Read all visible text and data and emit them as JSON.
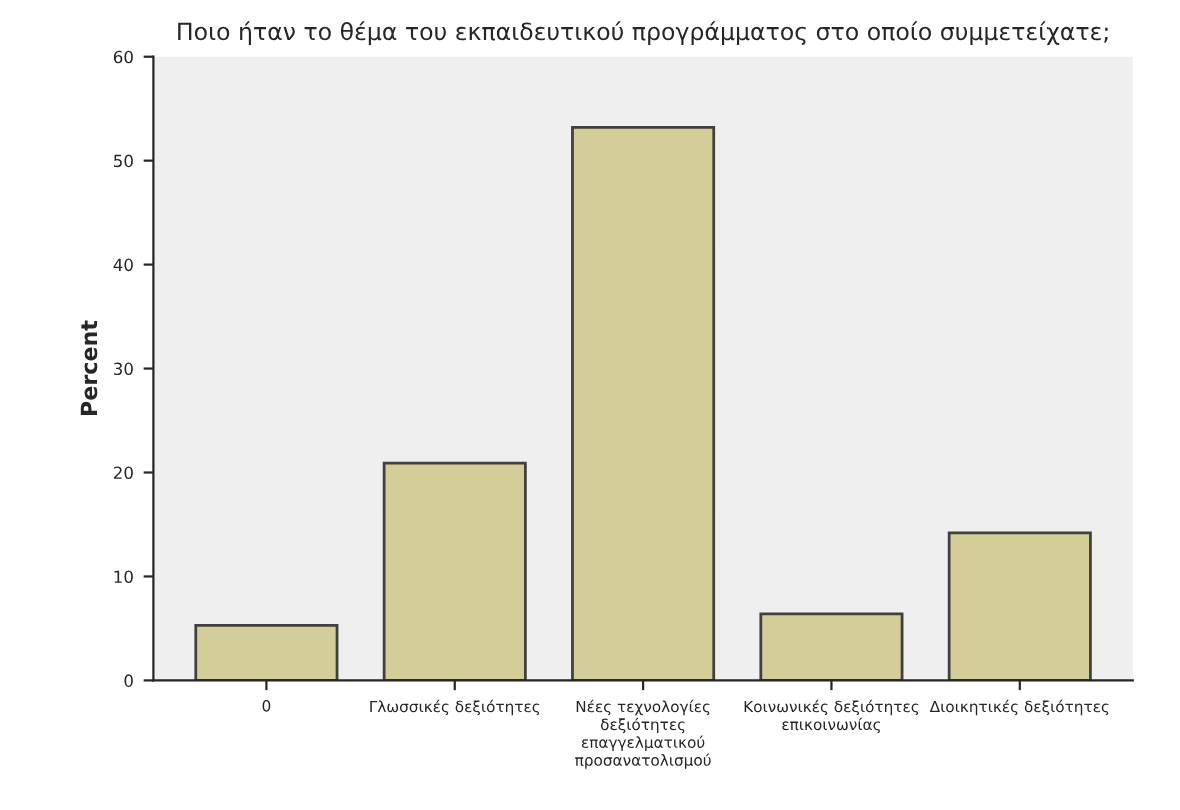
{
  "chart_data": {
    "type": "bar",
    "title": "Ποιο ήταν το θέμα του εκπαιδευτικού προγράμματος στο οποίο συμμετείχατε;",
    "ylabel": "Percent",
    "categories": [
      "0",
      "Γλωσσικές δεξιότητες",
      "Νέες τεχνολογίες δεξιότητες επαγγελματικού προσανατολισμού",
      "Κοινωνικές δεξιότητες επικοινωνίας",
      "Διοικητικές δεξιότητες"
    ],
    "values": [
      5.3,
      20.9,
      53.2,
      6.4,
      14.2
    ],
    "color": "#d3ce97",
    "ylim": [
      0,
      60
    ],
    "yticks": [
      0,
      10,
      20,
      30,
      40,
      50,
      60
    ],
    "grid": false
  }
}
